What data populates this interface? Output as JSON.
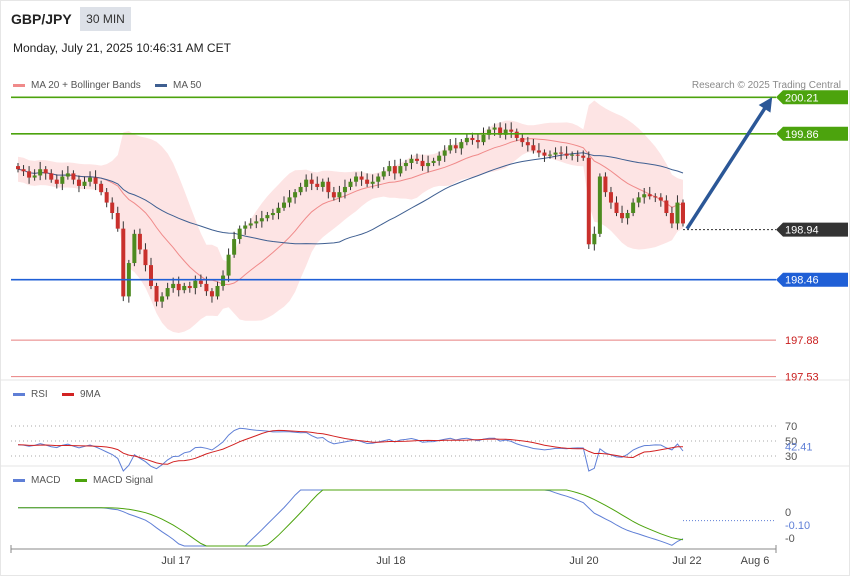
{
  "header": {
    "symbol": "GBP/JPY",
    "timeframe": "30 MIN",
    "datetime": "Monday, July 21, 2025 10:46:31 AM CET"
  },
  "legend": {
    "ma20_label": "MA 20 + Bollinger Bands",
    "ma50_label": "MA 50",
    "credit": "Research © 2025 Trading Central",
    "rsi_label": "RSI",
    "rsi_ma_label": "9MA",
    "macd_label": "MACD",
    "macd_signal_label": "MACD Signal"
  },
  "colors": {
    "green": "#4ca30d",
    "blue": "#1f5fd6",
    "red": "#e87f7f",
    "dark": "#333333",
    "arrow": "#2b5797",
    "ma20": "#f08a8a",
    "ma50": "#3f5f91",
    "bb_fill": "#fde4e4",
    "bull": "#4d8a1f",
    "bear": "#c9302c",
    "rsi": "#5f7fd6",
    "rsi_ma": "#d22222",
    "macd": "#5f7fd6",
    "macd_signal": "#4ca30d"
  },
  "chart_data": {
    "type": "candlestick",
    "symbol": "GBP/JPY",
    "timeframe": "30 MIN",
    "price_range": [
      197.45,
      200.28
    ],
    "x_labels": [
      "Jul 17",
      "Jul 18",
      "Jul 20",
      "Jul 22",
      "Aug 6"
    ],
    "levels": [
      {
        "value": 200.21,
        "label": "200.21",
        "color": "green",
        "kind": "resistance"
      },
      {
        "value": 199.86,
        "label": "199.86",
        "color": "green",
        "kind": "resistance"
      },
      {
        "value": 198.94,
        "label": "198.94",
        "color": "dark",
        "kind": "current"
      },
      {
        "value": 198.46,
        "label": "198.46",
        "color": "blue",
        "kind": "pivot"
      },
      {
        "value": 197.88,
        "label": "197.88",
        "color": "red",
        "kind": "support"
      },
      {
        "value": 197.53,
        "label": "197.53",
        "color": "red",
        "kind": "support"
      }
    ],
    "forecast_arrow": {
      "from": 198.95,
      "to": 200.18
    },
    "closes": [
      199.52,
      199.5,
      199.44,
      199.46,
      199.52,
      199.48,
      199.42,
      199.38,
      199.45,
      199.48,
      199.42,
      199.36,
      199.4,
      199.44,
      199.38,
      199.3,
      199.2,
      199.1,
      198.95,
      198.3,
      198.62,
      198.9,
      198.75,
      198.6,
      198.4,
      198.25,
      198.3,
      198.38,
      198.42,
      198.36,
      198.4,
      198.38,
      198.45,
      198.42,
      198.35,
      198.3,
      198.4,
      198.5,
      198.7,
      198.85,
      198.95,
      198.98,
      199.0,
      199.02,
      199.05,
      199.08,
      199.1,
      199.15,
      199.2,
      199.25,
      199.3,
      199.35,
      199.42,
      199.38,
      199.35,
      199.4,
      199.3,
      199.25,
      199.3,
      199.35,
      199.4,
      199.45,
      199.42,
      199.38,
      199.4,
      199.45,
      199.5,
      199.55,
      199.48,
      199.55,
      199.58,
      199.62,
      199.6,
      199.55,
      199.58,
      199.6,
      199.65,
      199.7,
      199.75,
      199.72,
      199.78,
      199.82,
      199.8,
      199.78,
      199.85,
      199.9,
      199.92,
      199.85,
      199.9,
      199.88,
      199.82,
      199.78,
      199.75,
      199.7,
      199.68,
      199.65,
      199.66,
      199.68,
      199.67,
      199.65,
      199.66,
      199.65,
      199.63,
      198.8,
      198.9,
      199.45,
      199.3,
      199.2,
      199.1,
      199.05,
      199.1,
      199.2,
      199.25,
      199.28,
      199.26,
      199.25,
      199.22,
      199.1,
      199.0,
      199.2,
      199.0
    ],
    "rsi": {
      "value": 42.41,
      "levels": [
        70,
        50,
        30
      ],
      "value_label": "42.41",
      "tick_labels": [
        "70",
        "50",
        "30"
      ]
    },
    "macd": {
      "value": -0.1,
      "value_label": "-0.10",
      "tick_labels": [
        "0",
        "-0"
      ]
    }
  }
}
